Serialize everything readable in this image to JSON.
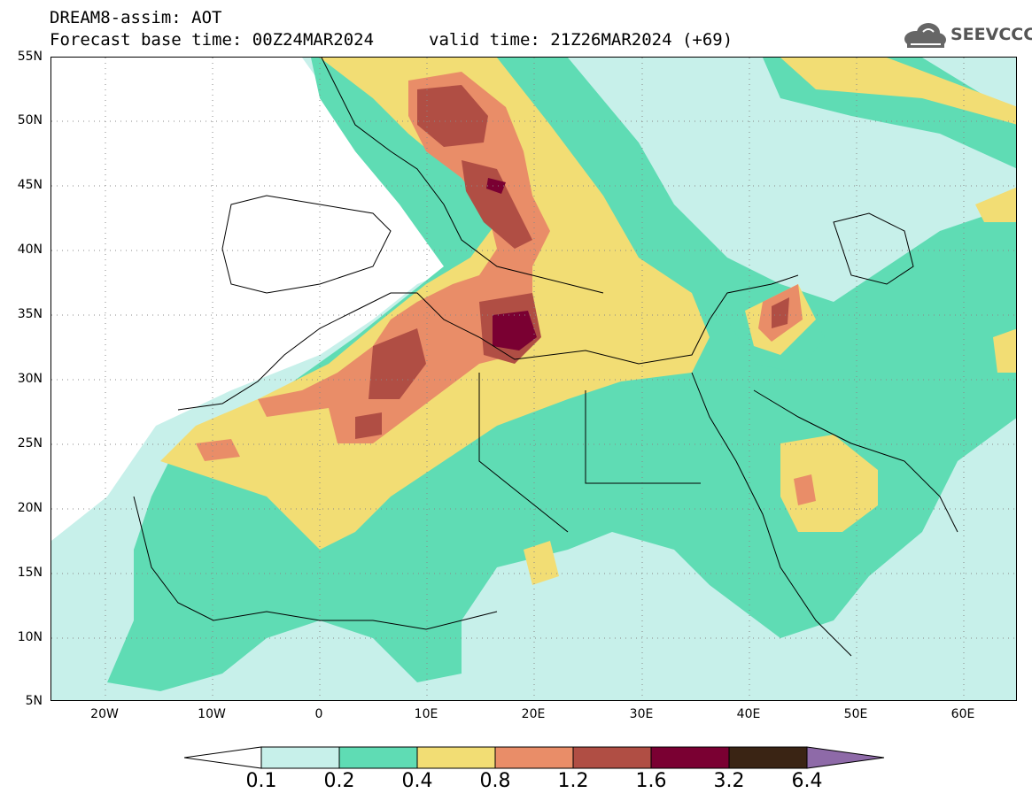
{
  "header": {
    "title": "DREAM8-assim: AOT",
    "base_time": "Forecast base time: 00Z24MAR2024",
    "valid_time": "valid time: 21Z26MAR2024 (+69)"
  },
  "logo": {
    "text": "SEEVCCC",
    "icon": "cloud-logo-icon"
  },
  "map": {
    "lon_range": [
      -25,
      65
    ],
    "lat_range": [
      5,
      55
    ],
    "lat_ticks": [
      "55N",
      "50N",
      "45N",
      "40N",
      "35N",
      "30N",
      "25N",
      "20N",
      "15N",
      "10N",
      "5N"
    ],
    "lon_ticks": [
      "20W",
      "10W",
      "0",
      "10E",
      "20E",
      "30E",
      "40E",
      "50E",
      "60E"
    ]
  },
  "colorbar": {
    "labels": [
      "0.1",
      "0.2",
      "0.4",
      "0.8",
      "1.2",
      "1.6",
      "3.2",
      "6.4"
    ],
    "colors": [
      "#c7f0ea",
      "#5fdcb4",
      "#f2dd74",
      "#e98d68",
      "#b04e44",
      "#7a0032",
      "#3a2414",
      "#8e6aa8"
    ]
  }
}
